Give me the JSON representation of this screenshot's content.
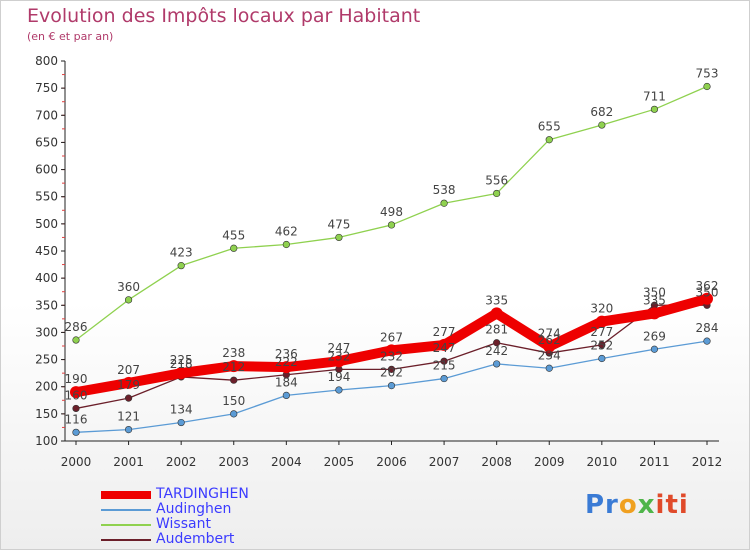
{
  "title": "Evolution des Impôts locaux par Habitant",
  "subtitle": "(en € et par an)",
  "logo": {
    "text": "Proxiti",
    "parts": [
      "Pr",
      "o",
      "x",
      "iti"
    ]
  },
  "chart_data": {
    "type": "line",
    "x": [
      "2000",
      "2001",
      "2002",
      "2003",
      "2004",
      "2005",
      "2006",
      "2007",
      "2008",
      "2009",
      "2010",
      "2011",
      "2012"
    ],
    "yticks": [
      100,
      150,
      200,
      250,
      300,
      350,
      400,
      450,
      500,
      550,
      600,
      650,
      700,
      750,
      800
    ],
    "ylim": [
      100,
      800
    ],
    "grid": false,
    "legend_position": "bottom-left",
    "series": [
      {
        "name": "TARDINGHEN",
        "color": "#ee0000",
        "thick": true,
        "values": [
          190,
          207,
          225,
          238,
          236,
          247,
          267,
          277,
          335,
          274,
          320,
          335,
          362
        ]
      },
      {
        "name": "Audinghen",
        "color": "#5b9bd5",
        "thick": false,
        "values": [
          116,
          121,
          134,
          150,
          184,
          194,
          202,
          215,
          242,
          234,
          252,
          269,
          284
        ]
      },
      {
        "name": "Wissant",
        "color": "#8fd14f",
        "thick": false,
        "values": [
          286,
          360,
          423,
          455,
          462,
          475,
          498,
          538,
          556,
          655,
          682,
          711,
          753
        ]
      },
      {
        "name": "Audembert",
        "color": "#6b1f2a",
        "thick": false,
        "values": [
          160,
          179,
          218,
          212,
          222,
          232,
          232,
          247,
          281,
          262,
          277,
          350,
          350
        ]
      }
    ]
  }
}
